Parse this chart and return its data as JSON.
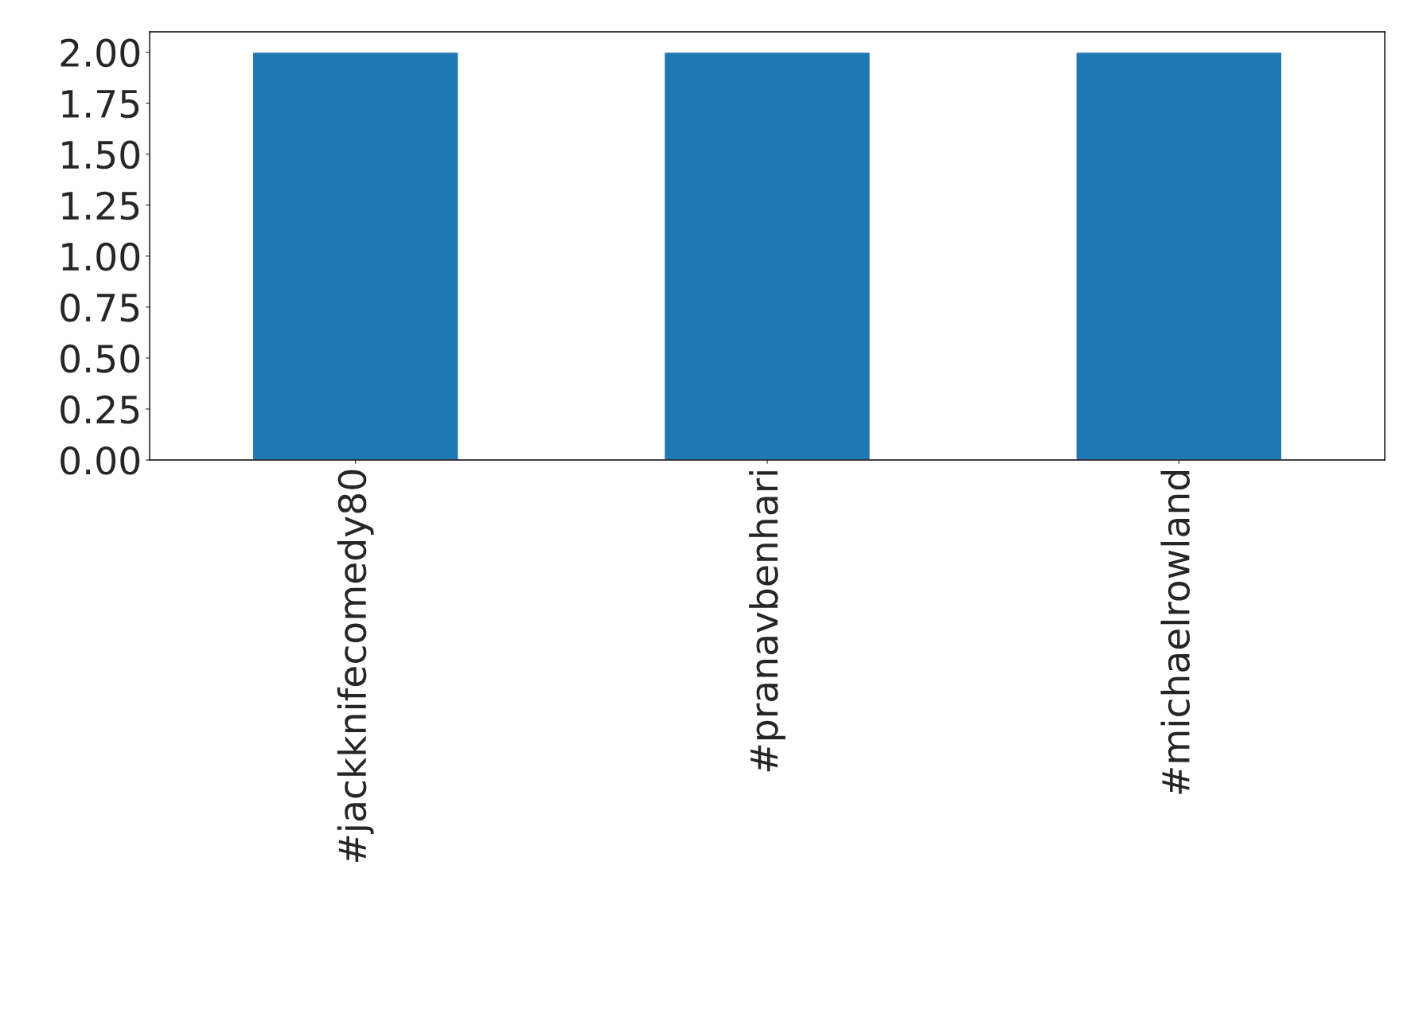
{
  "chart_data": {
    "type": "bar",
    "categories": [
      "#jackknifecomedy80",
      "#pranavbenhari",
      "#michaelrowland"
    ],
    "values": [
      2,
      2,
      2
    ],
    "color": "#1f77b4",
    "ylim": [
      0,
      2.1
    ],
    "yticks": [
      {
        "value": 0,
        "label": "0.00"
      },
      {
        "value": 0.25,
        "label": "0.25"
      },
      {
        "value": 0.5,
        "label": "0.50"
      },
      {
        "value": 0.75,
        "label": "0.75"
      },
      {
        "value": 1,
        "label": "1.00"
      },
      {
        "value": 1.25,
        "label": "1.25"
      },
      {
        "value": 1.5,
        "label": "1.50"
      },
      {
        "value": 1.75,
        "label": "1.75"
      },
      {
        "value": 2,
        "label": "2.00"
      }
    ],
    "grid": false,
    "legend": false
  }
}
